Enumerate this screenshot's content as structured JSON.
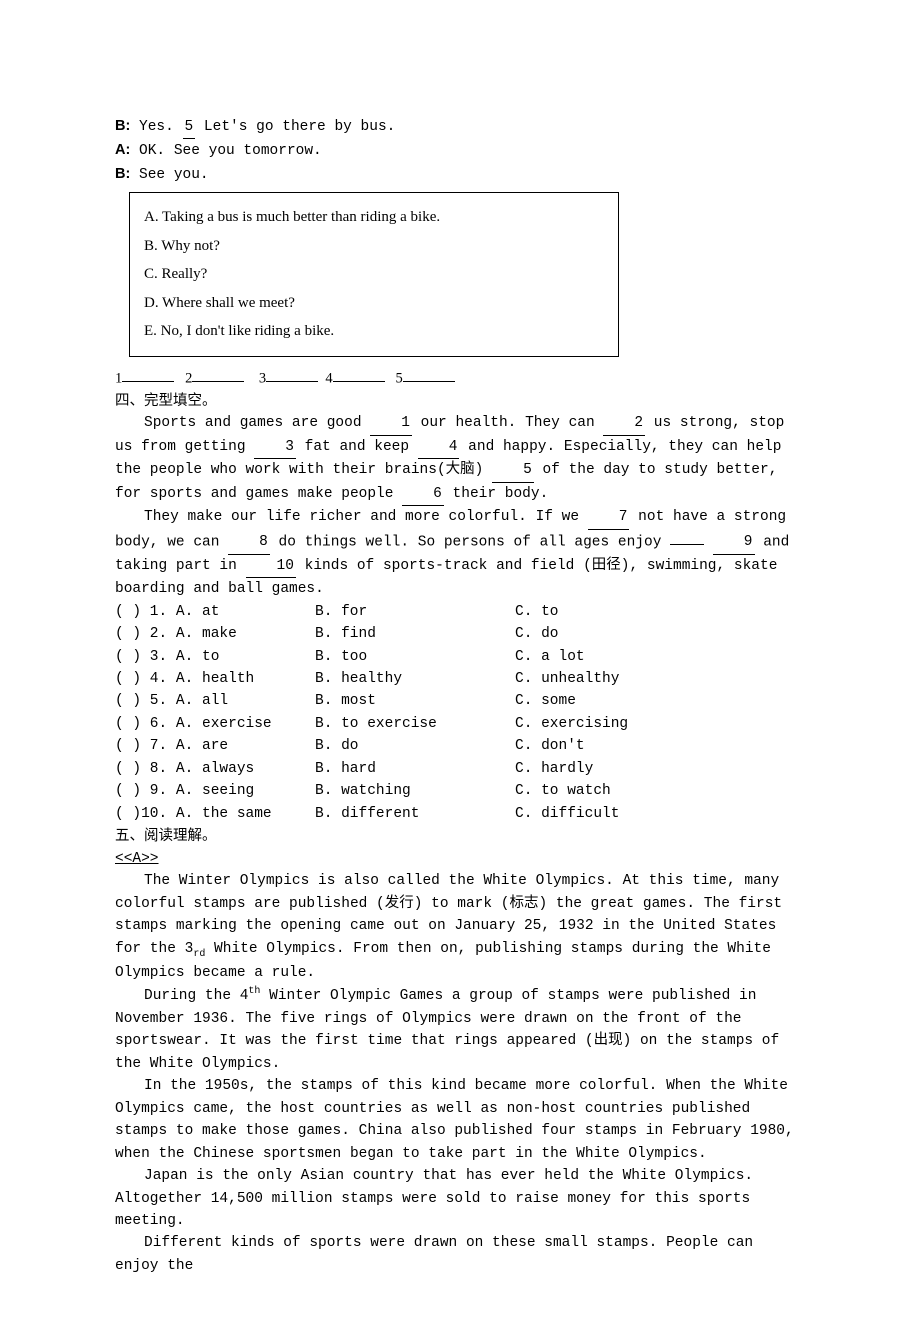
{
  "dialog": {
    "lineB1_prefix": "B:",
    "lineB1_a": " Yes. ",
    "lineB1_blank": "  5  ",
    "lineB1_c": " Let's go there by bus.",
    "lineA1_prefix": "A:",
    "lineA1": " OK. See you tomorrow.",
    "lineB2_prefix": "B:",
    "lineB2": " See you."
  },
  "box": {
    "A": "A.   Taking a bus is much better than riding a bike.",
    "B": "B.   Why not?",
    "C": "C.   Really?",
    "D": "D.   Where shall we meet?",
    "E": "E.   No, I don't like riding a bike."
  },
  "answers_row": {
    "n1": "1",
    "n2": "2",
    "n3": "3",
    "n4": "4",
    "n5": "5"
  },
  "section4_title": "四、完型填空。",
  "cloze_passage": {
    "p1_a": "Sports and games are good ",
    "b1": "  1  ",
    "p1_b": " our health. They can ",
    "b2": "  2  ",
    "p1_c": " us strong, stop us from getting ",
    "b3": "   3   ",
    "p1_d": " fat and keep ",
    "b4": "  4  ",
    "p1_e": " and happy. Especially, they can help the people who work with their brains(大脑) ",
    "b5": "  5  ",
    "p1_f": " of the day to study better, for sports and games make people ",
    "b6": "   6   ",
    "p1_g": " their body.",
    "p2_a": "They make our life richer and more colorful. If we ",
    "b7": "  7  ",
    "p2_b": " not have a strong body, we can ",
    "b8": "   8   ",
    "p2_c": " do things well. So persons of all ages enjoy ",
    "b9_pre": "    ",
    "b9": "  9  ",
    "p2_d": " and taking part in ",
    "b10": "  10  ",
    "p2_e": " kinds of sports-track and field (田径), swimming, skate boarding and ball games."
  },
  "cloze_options": [
    {
      "q": "(  ) 1. A. at",
      "b": "B. for",
      "c": " C. to"
    },
    {
      "q": "(   ) 2. A. make",
      "b": " B. find",
      "c": "C. do"
    },
    {
      "q": "(   ) 3. A. to",
      "b": " B. too",
      "c": "C. a lot"
    },
    {
      "q": "(   ) 4. A. health",
      "b": "  B. healthy",
      "c": "  C. unhealthy"
    },
    {
      "q": "(   ) 5. A. all",
      "b": "  B. most",
      "c": " C. some"
    },
    {
      "q": "(   ) 6. A. exercise",
      "b": "  B. to exercise",
      "c": "   C. exercising"
    },
    {
      "q": "(   ) 7. A. are",
      "b": "B. do",
      "c": "C. don't"
    },
    {
      "q": "(   ) 8. A. always",
      "b": " B. hard",
      "c": " C. hardly"
    },
    {
      "q": "(   ) 9. A. seeing",
      "b": "  B. watching",
      "c": "  C. to watch"
    },
    {
      "q": "(   )10. A. the same",
      "b": " B. different",
      "c": "  C. difficult"
    }
  ],
  "section5_title": "五、阅读理解。",
  "reading_label": "<<A>>",
  "reading": {
    "p1": "The Winter Olympics is also called the White Olympics. At this time, many colorful stamps are published (发行) to mark (标志) the great games. The first stamps marking the opening came out on January 25, 1932 in the United States for the 3",
    "p1_sub": "rd",
    "p1_end": " White Olympics. From then on, publishing stamps during the White Olympics became a rule.",
    "p2_a": "During the 4",
    "p2_sup": "th",
    "p2_b": " Winter Olympic Games a group of stamps were published in November 1936. The five rings of Olympics were drawn on the front of the sportswear. It was the first time that rings appeared (出现) on the stamps of the White Olympics.",
    "p3": "In the 1950s, the stamps of this kind became more colorful. When the White Olympics came, the host countries as well as non-host countries published stamps to make those games. China also published four stamps in February 1980, when the Chinese sportsmen began to take part in the White Olympics.",
    "p4": "Japan is the only Asian country that has ever held the White Olympics. Altogether 14,500 million stamps were sold to raise money for this sports meeting.",
    "p5": "Different kinds of sports were drawn on these small stamps. People can enjoy the"
  }
}
